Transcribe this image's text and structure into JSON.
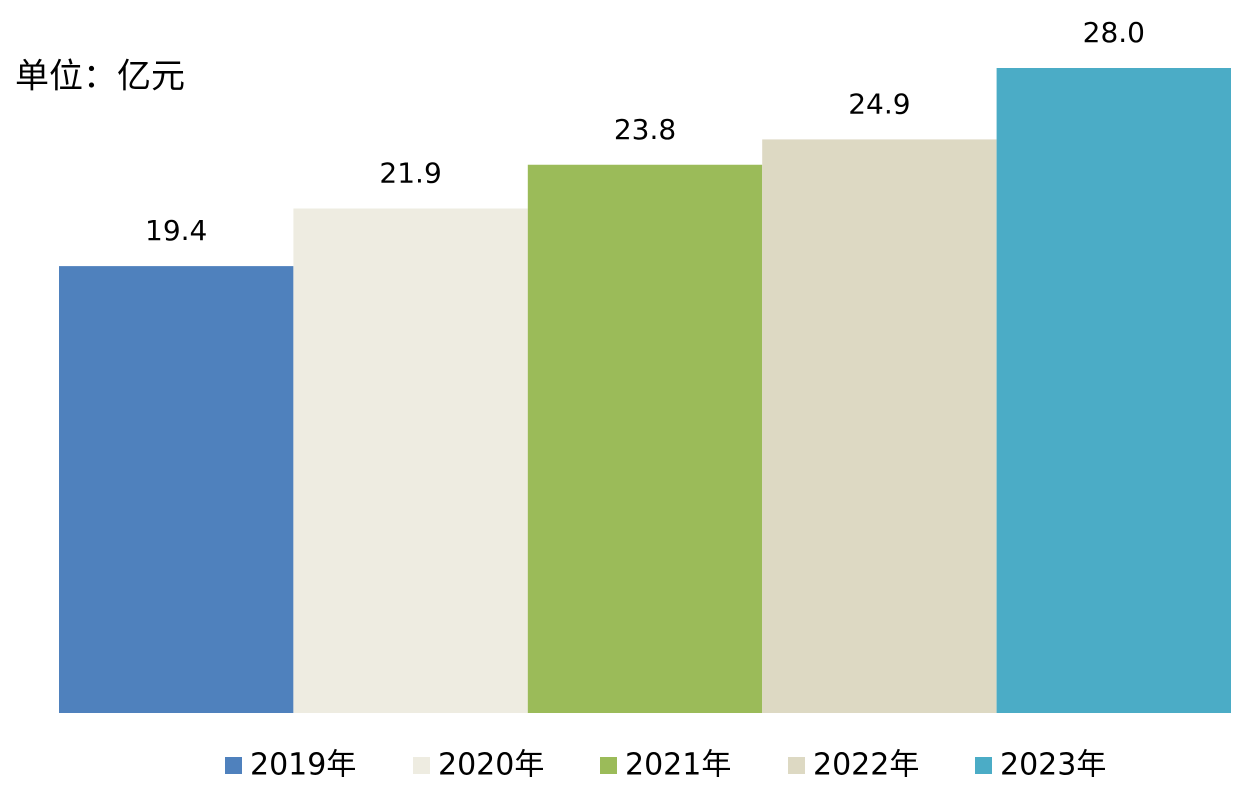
{
  "chart_data": {
    "type": "bar",
    "unit": "单位：亿元",
    "series": [
      {
        "name": "2019年",
        "color": "#4f81bd",
        "values": [
          19.4
        ]
      },
      {
        "name": "2020年",
        "color": "#eeece1",
        "values": [
          21.9
        ]
      },
      {
        "name": "2021年",
        "color": "#9bbb59",
        "values": [
          23.8
        ]
      },
      {
        "name": "2022年",
        "color": "#ddd9c3",
        "values": [
          24.9
        ]
      },
      {
        "name": "2023年",
        "color": "#4bacc6",
        "values": [
          28.0
        ],
        "value_labels": [
          "28.0"
        ]
      }
    ],
    "legend": "bottom"
  }
}
